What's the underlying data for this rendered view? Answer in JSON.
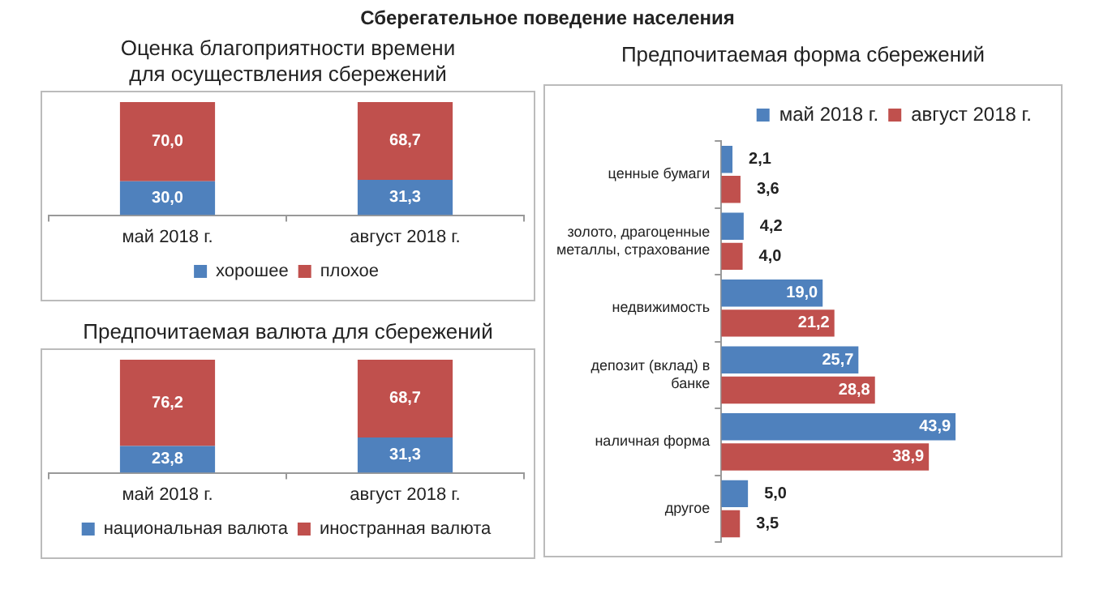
{
  "chart_data": [
    {
      "type": "other",
      "title": "Сберегательное поведение населения"
    },
    {
      "type": "bar",
      "title": "Оценка благоприятности времени\nдля осуществления сбережений",
      "stacked": true,
      "categories": [
        "май 2018 г.",
        "август 2018 г."
      ],
      "legend": "bottom",
      "grid": false,
      "series": [
        {
          "name": "хорошее",
          "color": "#4f81bd",
          "values": [
            30.0,
            31.3
          ],
          "value_labels": [
            "30,0",
            "31,3"
          ]
        },
        {
          "name": "плохое",
          "color": "#c0504d",
          "values": [
            70.0,
            68.7
          ],
          "value_labels": [
            "70,0",
            "68,7"
          ]
        }
      ]
    },
    {
      "type": "bar",
      "title": "Предпочитаемая валюта для сбережений",
      "stacked": true,
      "categories": [
        "май 2018 г.",
        "август 2018 г."
      ],
      "legend": "bottom",
      "grid": false,
      "series": [
        {
          "name": "национальная валюта",
          "color": "#4f81bd",
          "values": [
            23.8,
            31.3
          ],
          "value_labels": [
            "23,8",
            "31,3"
          ]
        },
        {
          "name": "иностранная валюта",
          "color": "#c0504d",
          "values": [
            76.2,
            68.7
          ],
          "value_labels": [
            "76,2",
            "68,7"
          ]
        }
      ]
    },
    {
      "type": "bar",
      "title": "Предпочитаемая форма сбережений",
      "orientation": "horizontal",
      "categories": [
        "ценные бумаги",
        "золото, драгоценные металлы, страхование",
        "недвижимость",
        "депозит (вклад) в банке",
        "наличная форма",
        "другое"
      ],
      "legend": "top right",
      "grid": false,
      "series": [
        {
          "name": "май 2018 г.",
          "color": "#4f81bd",
          "values": [
            2.1,
            4.2,
            19.0,
            25.7,
            43.9,
            5.0
          ],
          "value_labels": [
            "2,1",
            "4,2",
            "19,0",
            "25,7",
            "43,9",
            "5,0"
          ]
        },
        {
          "name": "август 2018 г.",
          "color": "#c0504d",
          "values": [
            3.6,
            4.0,
            21.2,
            28.8,
            38.9,
            3.5
          ],
          "value_labels": [
            "3,6",
            "4,0",
            "21,2",
            "28,8",
            "38,9",
            "3,5"
          ]
        }
      ]
    }
  ]
}
